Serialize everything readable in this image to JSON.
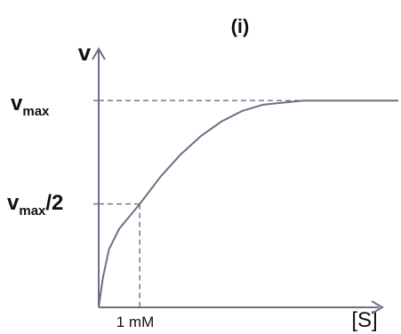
{
  "chart_data": {
    "type": "line",
    "title": "(i)",
    "ylabel": "v",
    "xlabel": "[S]",
    "x_tick_label": "1 mM",
    "vmax_symbol": "v",
    "vmax_subscript": "max",
    "half_vmax_suffix": "/2",
    "km": 1,
    "vmax": 1,
    "xlim": [
      0,
      7.3
    ],
    "ylim": [
      0,
      1.25
    ],
    "series": [
      {
        "x": [
          0,
          0.1,
          0.25,
          0.5,
          0.75,
          1,
          1.5,
          2,
          2.5,
          3,
          3.5,
          4,
          4.5,
          5,
          5.5,
          6,
          6.5,
          7,
          7.3
        ],
        "values": [
          0,
          0.14,
          0.28,
          0.38,
          0.44,
          0.5,
          0.63,
          0.74,
          0.83,
          0.9,
          0.95,
          0.98,
          0.99,
          1.0,
          1.0,
          1.0,
          1.0,
          1.0,
          1.0
        ]
      }
    ],
    "reference_lines": [
      "vmax",
      "vmax/2",
      "Km"
    ],
    "grid": false,
    "colors": {
      "curve": "#6a7082",
      "axes": "#6a7082",
      "dashes": "#6a7082",
      "text": "#111111"
    }
  }
}
